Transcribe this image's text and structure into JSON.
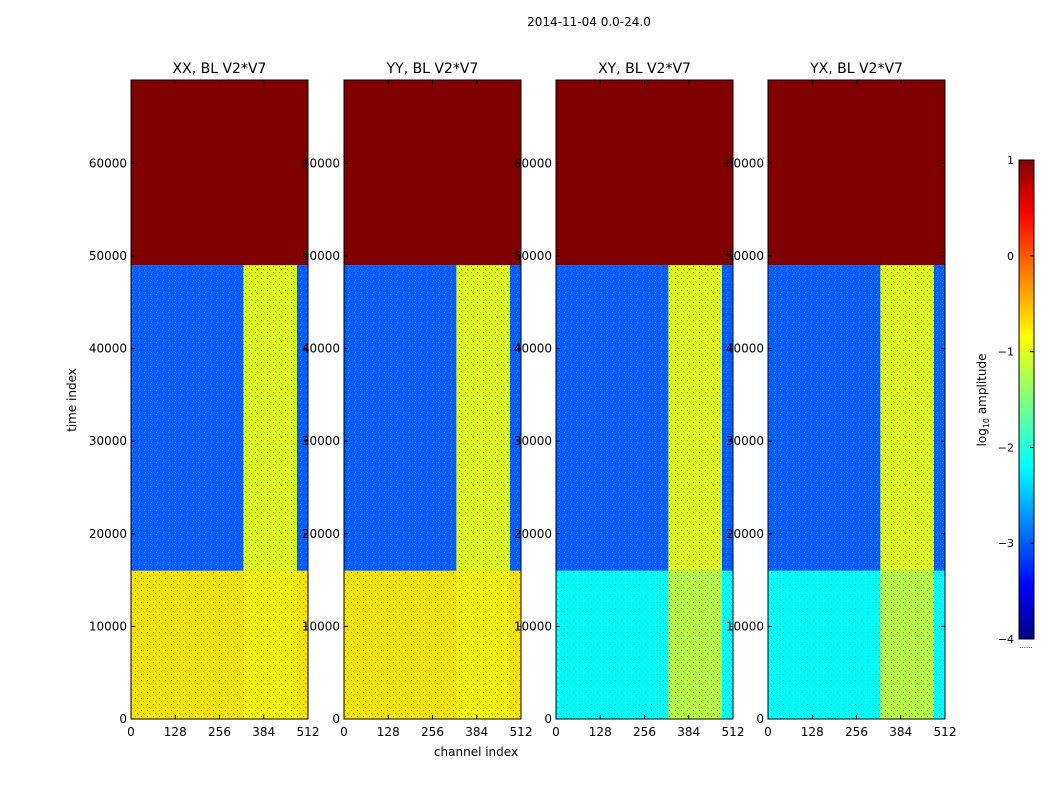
{
  "figure": {
    "suptitle": "2014-11-04 0.0-24.0",
    "xlabel": "channel index",
    "ylabel": "time index"
  },
  "colorbar": {
    "label_prefix": "log",
    "label_sub": "10",
    "label_suffix": " amplitude",
    "min": -4,
    "max": 1,
    "ticks": [
      1,
      0,
      -1,
      -2,
      -3,
      -4
    ],
    "tick_labels": [
      "1",
      "0",
      "−1",
      "−2",
      "−3",
      "−4"
    ],
    "colormap": "jet",
    "extra_mark": "......"
  },
  "chart_data": [
    {
      "type": "heatmap",
      "title": "XX, BL V2*V7",
      "xlim": [
        0,
        512
      ],
      "ylim": [
        0,
        69000
      ],
      "xticks": [
        0,
        128,
        256,
        384,
        512
      ],
      "yticks": [
        0,
        10000,
        20000,
        30000,
        40000,
        50000,
        60000
      ],
      "color_scale": "log10 amplitude",
      "regions": [
        {
          "t_start": 49000,
          "t_end": 69000,
          "ch_start": 0,
          "ch_end": 512,
          "log10_amplitude": 1.0
        },
        {
          "t_start": 16000,
          "t_end": 49000,
          "ch_start": 0,
          "ch_end": 512,
          "log10_amplitude": -3.0
        },
        {
          "t_start": 16000,
          "t_end": 49000,
          "ch_start": 325,
          "ch_end": 480,
          "log10_amplitude": -1.0
        },
        {
          "t_start": 0,
          "t_end": 16000,
          "ch_start": 0,
          "ch_end": 512,
          "log10_amplitude": -0.7
        },
        {
          "t_start": 0,
          "t_end": 16000,
          "ch_start": 325,
          "ch_end": 480,
          "log10_amplitude": -0.8
        }
      ]
    },
    {
      "type": "heatmap",
      "title": "YY, BL V2*V7",
      "xlim": [
        0,
        512
      ],
      "ylim": [
        0,
        69000
      ],
      "xticks": [
        0,
        128,
        256,
        384,
        512
      ],
      "yticks": [
        0,
        10000,
        20000,
        30000,
        40000,
        50000,
        60000
      ],
      "color_scale": "log10 amplitude",
      "regions": [
        {
          "t_start": 49000,
          "t_end": 69000,
          "ch_start": 0,
          "ch_end": 512,
          "log10_amplitude": 1.0
        },
        {
          "t_start": 16000,
          "t_end": 49000,
          "ch_start": 0,
          "ch_end": 512,
          "log10_amplitude": -3.0
        },
        {
          "t_start": 16000,
          "t_end": 49000,
          "ch_start": 325,
          "ch_end": 480,
          "log10_amplitude": -1.0
        },
        {
          "t_start": 0,
          "t_end": 16000,
          "ch_start": 0,
          "ch_end": 512,
          "log10_amplitude": -0.7
        },
        {
          "t_start": 0,
          "t_end": 16000,
          "ch_start": 325,
          "ch_end": 480,
          "log10_amplitude": -0.8
        }
      ]
    },
    {
      "type": "heatmap",
      "title": "XY, BL V2*V7",
      "xlim": [
        0,
        512
      ],
      "ylim": [
        0,
        69000
      ],
      "xticks": [
        0,
        128,
        256,
        384,
        512
      ],
      "yticks": [
        0,
        10000,
        20000,
        30000,
        40000,
        50000,
        60000
      ],
      "color_scale": "log10 amplitude",
      "regions": [
        {
          "t_start": 49000,
          "t_end": 69000,
          "ch_start": 0,
          "ch_end": 512,
          "log10_amplitude": 1.0
        },
        {
          "t_start": 16000,
          "t_end": 49000,
          "ch_start": 0,
          "ch_end": 512,
          "log10_amplitude": -3.0
        },
        {
          "t_start": 16000,
          "t_end": 49000,
          "ch_start": 325,
          "ch_end": 480,
          "log10_amplitude": -1.0
        },
        {
          "t_start": 0,
          "t_end": 16000,
          "ch_start": 0,
          "ch_end": 512,
          "log10_amplitude": -2.2
        },
        {
          "t_start": 0,
          "t_end": 16000,
          "ch_start": 325,
          "ch_end": 480,
          "log10_amplitude": -1.2
        }
      ]
    },
    {
      "type": "heatmap",
      "title": "YX, BL V2*V7",
      "xlim": [
        0,
        512
      ],
      "ylim": [
        0,
        69000
      ],
      "xticks": [
        0,
        128,
        256,
        384,
        512
      ],
      "yticks": [
        0,
        10000,
        20000,
        30000,
        40000,
        50000,
        60000
      ],
      "color_scale": "log10 amplitude",
      "regions": [
        {
          "t_start": 49000,
          "t_end": 69000,
          "ch_start": 0,
          "ch_end": 512,
          "log10_amplitude": 1.0
        },
        {
          "t_start": 16000,
          "t_end": 49000,
          "ch_start": 0,
          "ch_end": 512,
          "log10_amplitude": -3.0
        },
        {
          "t_start": 16000,
          "t_end": 49000,
          "ch_start": 325,
          "ch_end": 480,
          "log10_amplitude": -1.0
        },
        {
          "t_start": 0,
          "t_end": 16000,
          "ch_start": 0,
          "ch_end": 512,
          "log10_amplitude": -2.2
        },
        {
          "t_start": 0,
          "t_end": 16000,
          "ch_start": 325,
          "ch_end": 480,
          "log10_amplitude": -1.2
        }
      ]
    }
  ]
}
